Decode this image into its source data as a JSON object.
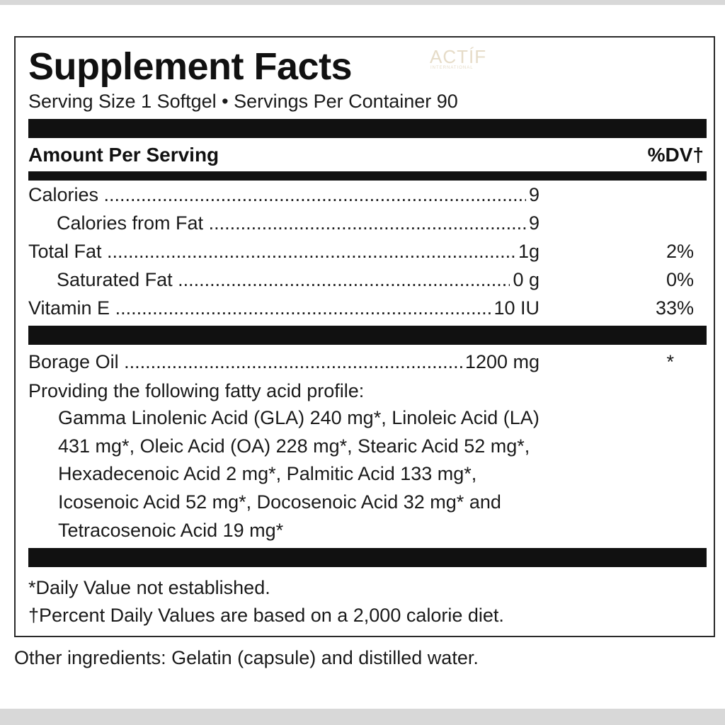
{
  "title": "Supplement Facts",
  "watermark": {
    "brand": "ACTÍF",
    "sub": "INTERNATIONAL"
  },
  "serving_line": "Serving Size 1 Softgel • Servings Per Container 90",
  "header": {
    "amount": "Amount Per Serving",
    "dv": "%DV†"
  },
  "nutrients": [
    {
      "label": "Calories",
      "amount": "9",
      "dv": ""
    },
    {
      "label": "Calories from Fat",
      "amount": "9",
      "dv": ""
    },
    {
      "label": "Total Fat",
      "amount": "1g",
      "dv": "2%"
    },
    {
      "label": "Saturated Fat",
      "amount": "0 g",
      "dv": "0%"
    },
    {
      "label": "Vitamin E",
      "amount": "10 IU",
      "dv": "33%"
    }
  ],
  "ingredient": {
    "label": "Borage Oil",
    "amount": "1200 mg",
    "dv": "*"
  },
  "profile_intro": "Providing the following fatty acid profile:",
  "acid_lines": [
    "Gamma Linolenic Acid (GLA) 240 mg*, Linoleic Acid (LA)",
    "431 mg*, Oleic Acid (OA) 228 mg*, Stearic Acid 52 mg*,",
    "Hexadecenoic Acid 2 mg*, Palmitic Acid 133 mg*,",
    "Icosenoic Acid 52 mg*, Docosenoic Acid 32 mg* and",
    "Tetracosenoic Acid 19 mg*"
  ],
  "footnotes": [
    "*Daily Value not established.",
    "†Percent Daily Values are based on a 2,000 calorie diet."
  ],
  "other_ingredients": "Other ingredients: Gelatin (capsule) and distilled water."
}
